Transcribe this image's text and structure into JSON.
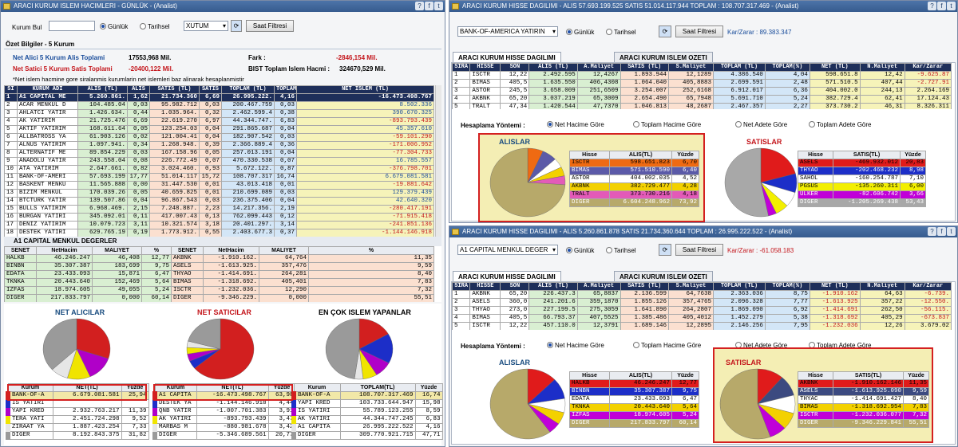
{
  "left": {
    "title": "ARACI KURUM ISLEM HACIMLERI - GÜNLÜK - (Analist)",
    "kurum_bul_label": "Kurum Bul",
    "gunluk_label": "Günlük",
    "tarihsel_label": "Tarihsel",
    "symbol_value": "XUTUM",
    "saat_filtresi": "Saat Filtresi",
    "ozet_title": "Özet Bilgiler - 5 Kurum",
    "net_alici_label": "Net Alici 5 Kurum Alis Toplami",
    "net_alici_value": "17553,968 Mil.",
    "net_satici_label": "Net Satici 5 Kurum Satis Toplami",
    "net_satici_value": "-20400,122 Mil.",
    "fark_label": "Fark :",
    "fark_value": "-2846,154 Mil.",
    "bist_label": "BIST Toplam Islem Hacmi :",
    "bist_value": "324670,529 Mil.",
    "note": "*Net islem hacmine gore siralanmis kurumlarin net islemleri baz alinarak hesaplanmistir",
    "main_headers": [
      "SI",
      "KURUM ADI",
      "ALIS (TL)",
      "ALIS",
      "SATIS (TL)",
      "SATIS",
      "TOPLAM (TL)",
      "TOPLAM",
      "NET ISLEM (TL)"
    ],
    "main_rows": [
      [
        "1",
        "A1 CAPITAL ME",
        "5.260.861.",
        "1,62",
        "21.734.360",
        "6,69",
        "26.995.222.",
        "4,16",
        "-16.473.498.767"
      ],
      [
        "2",
        "ACAR MENKUL D",
        "104.485.04",
        "0,03",
        "95.982.712",
        "0,03",
        "200.467.759",
        "0,03",
        "8.502.336"
      ],
      [
        "3",
        "AHLATCI YATIR",
        "1.426.634.",
        "0,44",
        "1.035.964.",
        "0,32",
        "2.462.599.4",
        "0,38",
        "390.670.325"
      ],
      [
        "4",
        "AK YATIRIM",
        "21.725.476",
        "6,69",
        "22.619.270",
        "6,97",
        "44.344.747.",
        "6,83",
        "-893.793.439"
      ],
      [
        "5",
        "AKTIF YATIRIM",
        "168.611.64",
        "0,05",
        "123.254.03",
        "0,04",
        "291.865.687",
        "0,04",
        "45.357.610"
      ],
      [
        "6",
        "ALLBATROSS YA",
        "61.903.126",
        "0,02",
        "121.004.41",
        "0,04",
        "182.907.542",
        "0,03",
        "-59.101.290"
      ],
      [
        "7",
        "ALNUS YATIRIM",
        "1.097.941.",
        "0,34",
        "1.268.948.",
        "0,39",
        "2.366.889.4",
        "0,36",
        "-171.006.952"
      ],
      [
        "8",
        "ALTERNATIF ME",
        "89.854.229",
        "0,03",
        "167.158.96",
        "0,05",
        "257.013.191",
        "0,04",
        "-77.304.733"
      ],
      [
        "9",
        "ANADOLU YATIR",
        "243.558.04",
        "0,08",
        "226.772.49",
        "0,07",
        "470.330.538",
        "0,07",
        "16.785.557"
      ],
      [
        "10",
        "ATA YATIRIM",
        "2.647.661.",
        "0,82",
        "3.024.460.",
        "0,93",
        "5.672.122.",
        "0,87",
        "-376.798.701"
      ],
      [
        "11",
        "BANK-OF-AMERI",
        "57.693.199",
        "17,77",
        "51.014.117",
        "15,72",
        "108.707.317",
        "16,74",
        "6.679.081.581"
      ],
      [
        "12",
        "BASKENT MENKU",
        "11.565.888",
        "0,00",
        "31.447.530",
        "0,01",
        "43.013.418",
        "0,01",
        "-19.881.642"
      ],
      [
        "13",
        "BIZIM MENKUL",
        "170.039.26",
        "0,05",
        "40.659.825",
        "0,01",
        "210.699.089",
        "0,03",
        "129.379.439"
      ],
      [
        "14",
        "BTCTURK YATIR",
        "139.507.86",
        "0,04",
        "96.867.543",
        "0,03",
        "236.375.406",
        "0,04",
        "42.640.320"
      ],
      [
        "15",
        "BULLS YATIRIM",
        "6.968.469.",
        "2,15",
        "7.248.887.",
        "2,23",
        "14.217.356.",
        "2,19",
        "-280.417.191"
      ],
      [
        "16",
        "BURGAN YATIRI",
        "345.092.01",
        "0,11",
        "417.007.43",
        "0,13",
        "762.099.443",
        "0,12",
        "-71.915.418"
      ],
      [
        "17",
        "DENIZ YATIRIM",
        "10.079.723",
        "3,11",
        "10.321.574",
        "3,18",
        "20.401.297.",
        "3,14",
        "-241.851.136"
      ],
      [
        "18",
        "DESTEK YATIRI",
        "629.765.19",
        "0,19",
        "1.773.912.",
        "0,55",
        "2.403.677.3",
        "0,37",
        "-1.144.146.918"
      ],
      [
        "19",
        "DUNYA YATIRIM",
        "14.225.437",
        "4,38",
        "14.971.700",
        "4,61",
        "29.197.137",
        "4,50",
        "-746.263"
      ]
    ],
    "a1_title": "A1 CAPITAL MENKUL DEGERLER",
    "a1_headers": [
      "SENET",
      "NetHacim",
      "MALIYET",
      "%",
      "SENET",
      "NetHacim",
      "MALIYET",
      "%"
    ],
    "a1_rows": [
      [
        "HALKB",
        "46.246.247",
        "46,408",
        "12,77",
        "AKBNK",
        "-1.910.162.",
        "64,764",
        "11,35"
      ],
      [
        "BINBN",
        "35.307.387",
        "183,699",
        "9,75",
        "ASELS",
        "-1.613.925.",
        "357,476",
        "9,59"
      ],
      [
        "EDATA",
        "23.433.093",
        "15,871",
        "6,47",
        "THYAO",
        "-1.414.691.",
        "264,281",
        "8,40"
      ],
      [
        "TKNKA",
        "20.443.640",
        "152,469",
        "5,64",
        "BIMAS",
        "-1.318.692.",
        "405,401",
        "7,83"
      ],
      [
        "IZFAS",
        "18.974.605",
        "49,055",
        "5,24",
        "ISCTR",
        "-1.232.036.",
        "12,290",
        "7,32"
      ],
      [
        "DIGER",
        "217.833.797",
        "0,000",
        "60,14",
        "DIGER",
        "-9.346.229.",
        "0,000",
        "55,51"
      ]
    ],
    "pie_titles": [
      "NET ALICILAR",
      "NET SATICILAR",
      "EN ÇOK ISLEM YAPANLAR"
    ],
    "net_alici_table": {
      "headers": [
        "Kurum",
        "NET(TL)",
        "Yüzde"
      ],
      "rows": [
        [
          "BANK-OF-A",
          "6.679.081.581",
          "25,94"
        ],
        [
          "IS YATIRI",
          "",
          ""
        ],
        [
          "YAPI KRED",
          "2.932.763.217",
          "11,39"
        ],
        [
          "TERA YATI",
          "2.451.724.298",
          "9,52"
        ],
        [
          "ZIRAAT YA",
          "1.887.423.254",
          "7,33"
        ],
        [
          "DIGER",
          "8.192.843.375",
          "31,82"
        ]
      ]
    },
    "net_satici_table": {
      "headers": [
        "Kurum",
        "NET(TL)",
        "Yüzde"
      ],
      "rows": [
        [
          "A1 CAPITA",
          "-16.473.498.767",
          "63,98"
        ],
        [
          "DESTEK YA",
          "-1.144.146.918",
          "4,44"
        ],
        [
          "QNB YATIR",
          "-1.007.701.383",
          "3,91"
        ],
        [
          "AK YATIRI",
          "-893.793.439",
          "3,47"
        ],
        [
          "MARBAS M",
          "-880.981.678",
          "3,42"
        ],
        [
          "DIGER",
          "-5.346.689.561",
          "20,77"
        ]
      ]
    },
    "en_cok_table": {
      "headers": [
        "Kurum",
        "TOPLAM(TL)",
        "Yüzde"
      ],
      "rows": [
        [
          "BANK-OF-A",
          "108.707.317.469",
          "16,74"
        ],
        [
          "YAPI KRED",
          "103.733.644.947",
          "15,98"
        ],
        [
          "IS YATIRI",
          "55.789.123.255",
          "8,59"
        ],
        [
          "AK YATIRI",
          "44.344.747.245",
          "6,83"
        ],
        [
          "A1 CAPITA",
          "26.995.222.522",
          "4,16"
        ],
        [
          "DIGER",
          "309.770.921.715",
          "47,71"
        ]
      ]
    }
  },
  "rt": {
    "title": "ARACI KURUM HISSE DAGILIMI - ALIS 57.693.199.525  SATIS 51.014.117.944  TOPLAM : 108.707.317.469 - (Analist)",
    "broker": "BANK-OF-AMERICA YATIRIN",
    "gunluk_label": "Günlük",
    "tarihsel_label": "Tarihsel",
    "saat_filtresi": "Saat Filtresi",
    "karzarar": "Kar/Zarar : 89.383.347",
    "tab1": "ARACI KURUM HISSE DAGILIMI",
    "tab2": "ARACI KURUM ISLEM OZETI",
    "headers": [
      "SIRA",
      "HISSE",
      "SON",
      "ALIS (TL)",
      "A.Maliyet",
      "SATIS (TL)",
      "S.Maliyet",
      "TOPLAM (TL)",
      "TOPLAM(%)",
      "NET (TL)",
      "N.Maliyet",
      "Kar/Zarar"
    ],
    "rows": [
      [
        "1",
        "ISCTR",
        "12,22",
        "2.492.595",
        "12,4267",
        "1.893.944",
        "12,1289",
        "4.386.540",
        "4,04",
        "598.651.8",
        "12,42",
        "-9.625.87"
      ],
      [
        "2",
        "BIMAS",
        "405,5",
        "1.635.550",
        "406,4308",
        "1.064.040",
        "405,8883",
        "2.699.591",
        "2,48",
        "571.510.5",
        "407,44",
        "-2.727.91"
      ],
      [
        "3",
        "ASTOR",
        "245,5",
        "3.658.009",
        "251,6509",
        "3.254.007",
        "252,6168",
        "6.912.017",
        "6,36",
        "404.002.0",
        "244,13",
        "2.264.169"
      ],
      [
        "4",
        "AKBNK",
        "65,20",
        "3.037.219",
        "65,3009",
        "2.654.490",
        "65,7948",
        "5.691.710",
        "5,24",
        "382.729.4",
        "62,41",
        "17.124.43"
      ],
      [
        "5",
        "TRALT",
        "47,34",
        "1.420.544",
        "47,7370",
        "1.046.813",
        "48,2687",
        "2.467.357",
        "2,27",
        "373.730.2",
        "46,31",
        "8.326.311"
      ]
    ],
    "hesap_label": "Hesaplama Yöntemi :",
    "opts": [
      "Net Hacime Göre",
      "Toplam Hacime Göre",
      "Net Adete Göre",
      "Toplam Adete Göre"
    ],
    "alislar": "ALISLAR",
    "satislar": "SATISLAR",
    "alis_headers": [
      "Hisse",
      "ALIS(TL)",
      "Yüzde"
    ],
    "alis_rows": [
      [
        "ISCTR",
        "598.651.823",
        "6,70"
      ],
      [
        "BIMAS",
        "571.510.590",
        "6,40"
      ],
      [
        "ASTOR",
        "404.002.035",
        "4,52"
      ],
      [
        "AKBNK",
        "382.729.477",
        "4,28"
      ],
      [
        "TRALT",
        "373.730.216",
        "4,18"
      ],
      [
        "DIGER",
        "6.604.248.962",
        "73,92"
      ]
    ],
    "satis_headers": [
      "Hisse",
      "SATIS(TL)",
      "Yüzde"
    ],
    "satis_rows": [
      [
        "ASELS",
        "-469.932.012",
        "20,83"
      ],
      [
        "THYAO",
        "-202.468.232",
        "8,98"
      ],
      [
        "SAHOL",
        "-160.254.787",
        "7,10"
      ],
      [
        "PGSUS",
        "-135.260.311",
        "6,00"
      ],
      [
        "ULKER",
        "-82.606.742",
        "3,66"
      ],
      [
        "DIGER",
        "-1.205.269.438",
        "53,43"
      ]
    ]
  },
  "rb": {
    "title": "ARACI KURUM HISSE DAGILIMI - ALIS 5.260.861.878  SATIS 21.734.360.644  TOPLAM : 26.995.222.522 - (Analist)",
    "broker": "A1 CAPITAL MENKUL DEGER",
    "gunluk_label": "Günlük",
    "tarihsel_label": "Tarihsel",
    "saat_filtresi": "Saat Filtresi",
    "karzarar": "Kar/Zarar : -61.058.183",
    "tab1": "ARACI KURUM HISSE DAGILIMI",
    "tab2": "ARACI KURUM ISLEM OZETI",
    "headers": [
      "SIRA",
      "HISSE",
      "SON",
      "ALIS (TL)",
      "A.Maliyet",
      "SATIS (TL)",
      "S.Maliyet",
      "TOPLAM (TL)",
      "TOPLAM(%)",
      "NET (TL)",
      "N.Maliyet",
      "Kar/Zarar"
    ],
    "rows": [
      [
        "1",
        "AKBNK",
        "65,20",
        "226.437.3",
        "65,8837",
        "2.136.599",
        "64,7638",
        "2.363.036",
        "8,75",
        "-1.910.162",
        "64,63",
        "-6.739."
      ],
      [
        "2",
        "ASELS",
        "360,0",
        "241.201.6",
        "359,1870",
        "1.855.126",
        "357,4765",
        "2.096.328",
        "7,77",
        "-1.613.925",
        "357,22",
        "-12.550."
      ],
      [
        "3",
        "THYAO",
        "273,0",
        "227.199.5",
        "275,3059",
        "1.641.890",
        "264,2807",
        "1.869.090",
        "6,92",
        "-1.414.691",
        "262,50",
        "-56.115."
      ],
      [
        "4",
        "BIMAS",
        "405,5",
        "66.793.37",
        "407,5525",
        "1.385.486",
        "405,4012",
        "1.452.279",
        "5,38",
        "-1.318.692",
        "405,29",
        "-673.837"
      ],
      [
        "5",
        "ISCTR",
        "12,22",
        "457.110.0",
        "12,3791",
        "1.689.146",
        "12,2895",
        "2.146.256",
        "7,95",
        "-1.232.036",
        "12,26",
        "3.679.02"
      ]
    ],
    "hesap_label": "Hesaplama Yöntemi :",
    "opts": [
      "Net Hacime Göre",
      "Toplam Hacime Göre",
      "Net Adete Göre",
      "Toplam Adete Göre"
    ],
    "alislar": "ALISLAR",
    "satislar": "SATISLAR",
    "alis_headers": [
      "Hisse",
      "ALIS(TL)",
      "Yüzde"
    ],
    "alis_rows": [
      [
        "HALKB",
        "46.246.247",
        "12,77"
      ],
      [
        "BINBN",
        "35.307.387",
        "9,75"
      ],
      [
        "EDATA",
        "23.433.093",
        "6,47"
      ],
      [
        "TKNKA",
        "20.443.640",
        "5,64"
      ],
      [
        "IZFAS",
        "18.974.605",
        "5,24"
      ],
      [
        "DIGER",
        "217.833.797",
        "60,14"
      ]
    ],
    "satis_headers": [
      "Hisse",
      "SATIS(TL)",
      "Yüzde"
    ],
    "satis_rows": [
      [
        "AKBNK",
        "-1.910.162.146",
        "11,35"
      ],
      [
        "ASELS",
        "-1.613.925.090",
        "9,59"
      ],
      [
        "THYAC",
        "-1.414.691.427",
        "8,40"
      ],
      [
        "BIMAS",
        "-1.318.692.954",
        "7,83"
      ],
      [
        "ISCTR",
        "-1.232.036.077",
        "7,32"
      ],
      [
        "DIGER",
        "-9.346.229.841",
        "55,51"
      ]
    ]
  },
  "colors": {
    "title_bar": "#3b6296",
    "header_dark": "#1e2f5a",
    "highlight_red": "#d42020",
    "accent_blue": "#1f4ea8"
  }
}
